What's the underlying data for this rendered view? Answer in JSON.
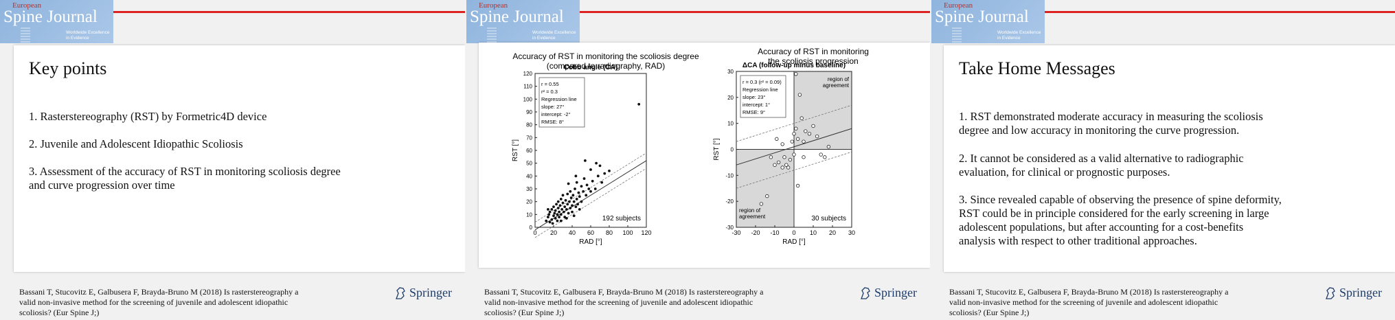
{
  "logo": {
    "european": "European",
    "journal": "Spine Journal",
    "tagline_1": "Worldwide Excellence",
    "tagline_2": "in Evidence"
  },
  "slide1": {
    "title": "Key points",
    "points": [
      "1. Rasterstereography (RST) by Formetric4D device",
      "2. Juvenile and Adolescent Idiopathic Scoliosis",
      "3. Assessment of the accuracy of RST in monitoring scoliosis degree",
      "and curve progression over time"
    ]
  },
  "slide2": {
    "heading_left_1": "Accuracy of RST in monitoring the scoliosis degree",
    "heading_left_2": "(compared to radiography, RAD)",
    "heading_right_1": "Accuracy of RST in monitoring",
    "heading_right_2": "the scoliosis progression"
  },
  "slide3": {
    "title": "Take Home Messages",
    "m1": [
      "1. RST demonstrated moderate accuracy in measuring the scoliosis",
      "degree and low accuracy in monitoring the curve progression."
    ],
    "m2": [
      "2. It cannot be considered as a valid alternative to radiographic",
      "evaluation, for clinical or prognostic purposes."
    ],
    "m3": [
      "3. Since revealed capable of observing the presence of spine deformity,",
      "RST could be in principle considered for the early screening in large",
      "adolescent populations, but after accounting for a cost-benefits",
      "analysis with respect to other traditional approaches."
    ]
  },
  "citation": [
    "Bassani T, Stucovitz E, Galbusera F, Brayda-Bruno M (2018) Is rasterstereography a",
    "valid non-invasive method for the screening of juvenile and adolescent idiopathic",
    "scoliosis? (Eur Spine J;)"
  ],
  "publisher": "Springer",
  "chart_data": [
    {
      "type": "scatter",
      "title": "Cobb angle (CA)",
      "xlabel": "RAD [°]",
      "ylabel": "RST [°]",
      "xlim": [
        0,
        120
      ],
      "ylim": [
        0,
        120
      ],
      "xticks": [
        "0",
        "20",
        "40",
        "60",
        "80",
        "100",
        "120"
      ],
      "yticks": [
        "0",
        "10",
        "20",
        "30",
        "40",
        "50",
        "60",
        "70",
        "80",
        "90",
        "100",
        "110",
        "120"
      ],
      "stats": [
        "r = 0.55",
        "r² = 0.3",
        "Regression line",
        "slope: 27°",
        "intercept: -2°",
        "RMSE: 8°"
      ],
      "subjects_label": "192 subjects",
      "points": [
        [
          12,
          5
        ],
        [
          14,
          8
        ],
        [
          15,
          10
        ],
        [
          16,
          12
        ],
        [
          18,
          6
        ],
        [
          18,
          14
        ],
        [
          20,
          9
        ],
        [
          20,
          16
        ],
        [
          21,
          11
        ],
        [
          22,
          7
        ],
        [
          22,
          13
        ],
        [
          23,
          18
        ],
        [
          24,
          10
        ],
        [
          25,
          15
        ],
        [
          25,
          20
        ],
        [
          26,
          8
        ],
        [
          26,
          12
        ],
        [
          27,
          17
        ],
        [
          28,
          22
        ],
        [
          28,
          10
        ],
        [
          29,
          14
        ],
        [
          30,
          19
        ],
        [
          30,
          25
        ],
        [
          31,
          12
        ],
        [
          32,
          16
        ],
        [
          32,
          8
        ],
        [
          33,
          21
        ],
        [
          34,
          14
        ],
        [
          35,
          18
        ],
        [
          35,
          26
        ],
        [
          36,
          11
        ],
        [
          37,
          20
        ],
        [
          38,
          15
        ],
        [
          38,
          28
        ],
        [
          39,
          23
        ],
        [
          40,
          17
        ],
        [
          40,
          12
        ],
        [
          41,
          25
        ],
        [
          42,
          20
        ],
        [
          43,
          30
        ],
        [
          44,
          16
        ],
        [
          45,
          22
        ],
        [
          45,
          35
        ],
        [
          46,
          18
        ],
        [
          47,
          27
        ],
        [
          48,
          24
        ],
        [
          50,
          20
        ],
        [
          50,
          32
        ],
        [
          52,
          28
        ],
        [
          53,
          38
        ],
        [
          55,
          25
        ],
        [
          56,
          33
        ],
        [
          58,
          30
        ],
        [
          60,
          45
        ],
        [
          62,
          36
        ],
        [
          65,
          30
        ],
        [
          68,
          40
        ],
        [
          70,
          48
        ],
        [
          72,
          35
        ],
        [
          75,
          42
        ],
        [
          54,
          52
        ],
        [
          80,
          44
        ],
        [
          60,
          28
        ],
        [
          66,
          50
        ],
        [
          112,
          96
        ],
        [
          16,
          4
        ],
        [
          19,
          3
        ],
        [
          24,
          5
        ],
        [
          14,
          14
        ],
        [
          28,
          5
        ],
        [
          34,
          7
        ],
        [
          42,
          9
        ],
        [
          48,
          14
        ],
        [
          36,
          34
        ],
        [
          44,
          40
        ]
      ]
    },
    {
      "type": "scatter",
      "title": "ΔCA (follow-up minus baseline)",
      "xlabel": "RAD [°]",
      "ylabel": "RST [°]",
      "xlim": [
        -30,
        30
      ],
      "ylim": [
        -30,
        30
      ],
      "xticks": [
        "-30",
        "-20",
        "-10",
        "0",
        "10",
        "20",
        "30"
      ],
      "yticks": [
        "-30",
        "-20",
        "-10",
        "0",
        "10",
        "20",
        "30"
      ],
      "stats": [
        "r = 0.3 (r² = 0.09)",
        "Regression line",
        "slope: 23°",
        "intercept: 1°",
        "RMSE: 9°"
      ],
      "region_top": [
        "region of",
        "agreement"
      ],
      "region_bottom": [
        "region of",
        "agreement"
      ],
      "subjects_label": "30 subjects",
      "points": [
        [
          -17,
          -21
        ],
        [
          -14,
          -18
        ],
        [
          -12,
          -3
        ],
        [
          -10,
          -6
        ],
        [
          -8,
          -5
        ],
        [
          -6,
          -7
        ],
        [
          -5,
          -3
        ],
        [
          -4,
          -6
        ],
        [
          -3,
          -7
        ],
        [
          -2,
          -4
        ],
        [
          -1,
          3
        ],
        [
          0,
          -2
        ],
        [
          0,
          6
        ],
        [
          1,
          8
        ],
        [
          1,
          29
        ],
        [
          2,
          4
        ],
        [
          2,
          -14
        ],
        [
          3,
          21
        ],
        [
          4,
          12
        ],
        [
          5,
          -3
        ],
        [
          6,
          7
        ],
        [
          8,
          6
        ],
        [
          10,
          9
        ],
        [
          12,
          5
        ],
        [
          14,
          -2
        ],
        [
          16,
          -3
        ],
        [
          18,
          1
        ],
        [
          -9,
          4
        ],
        [
          -6,
          2
        ],
        [
          5,
          3
        ]
      ]
    }
  ]
}
